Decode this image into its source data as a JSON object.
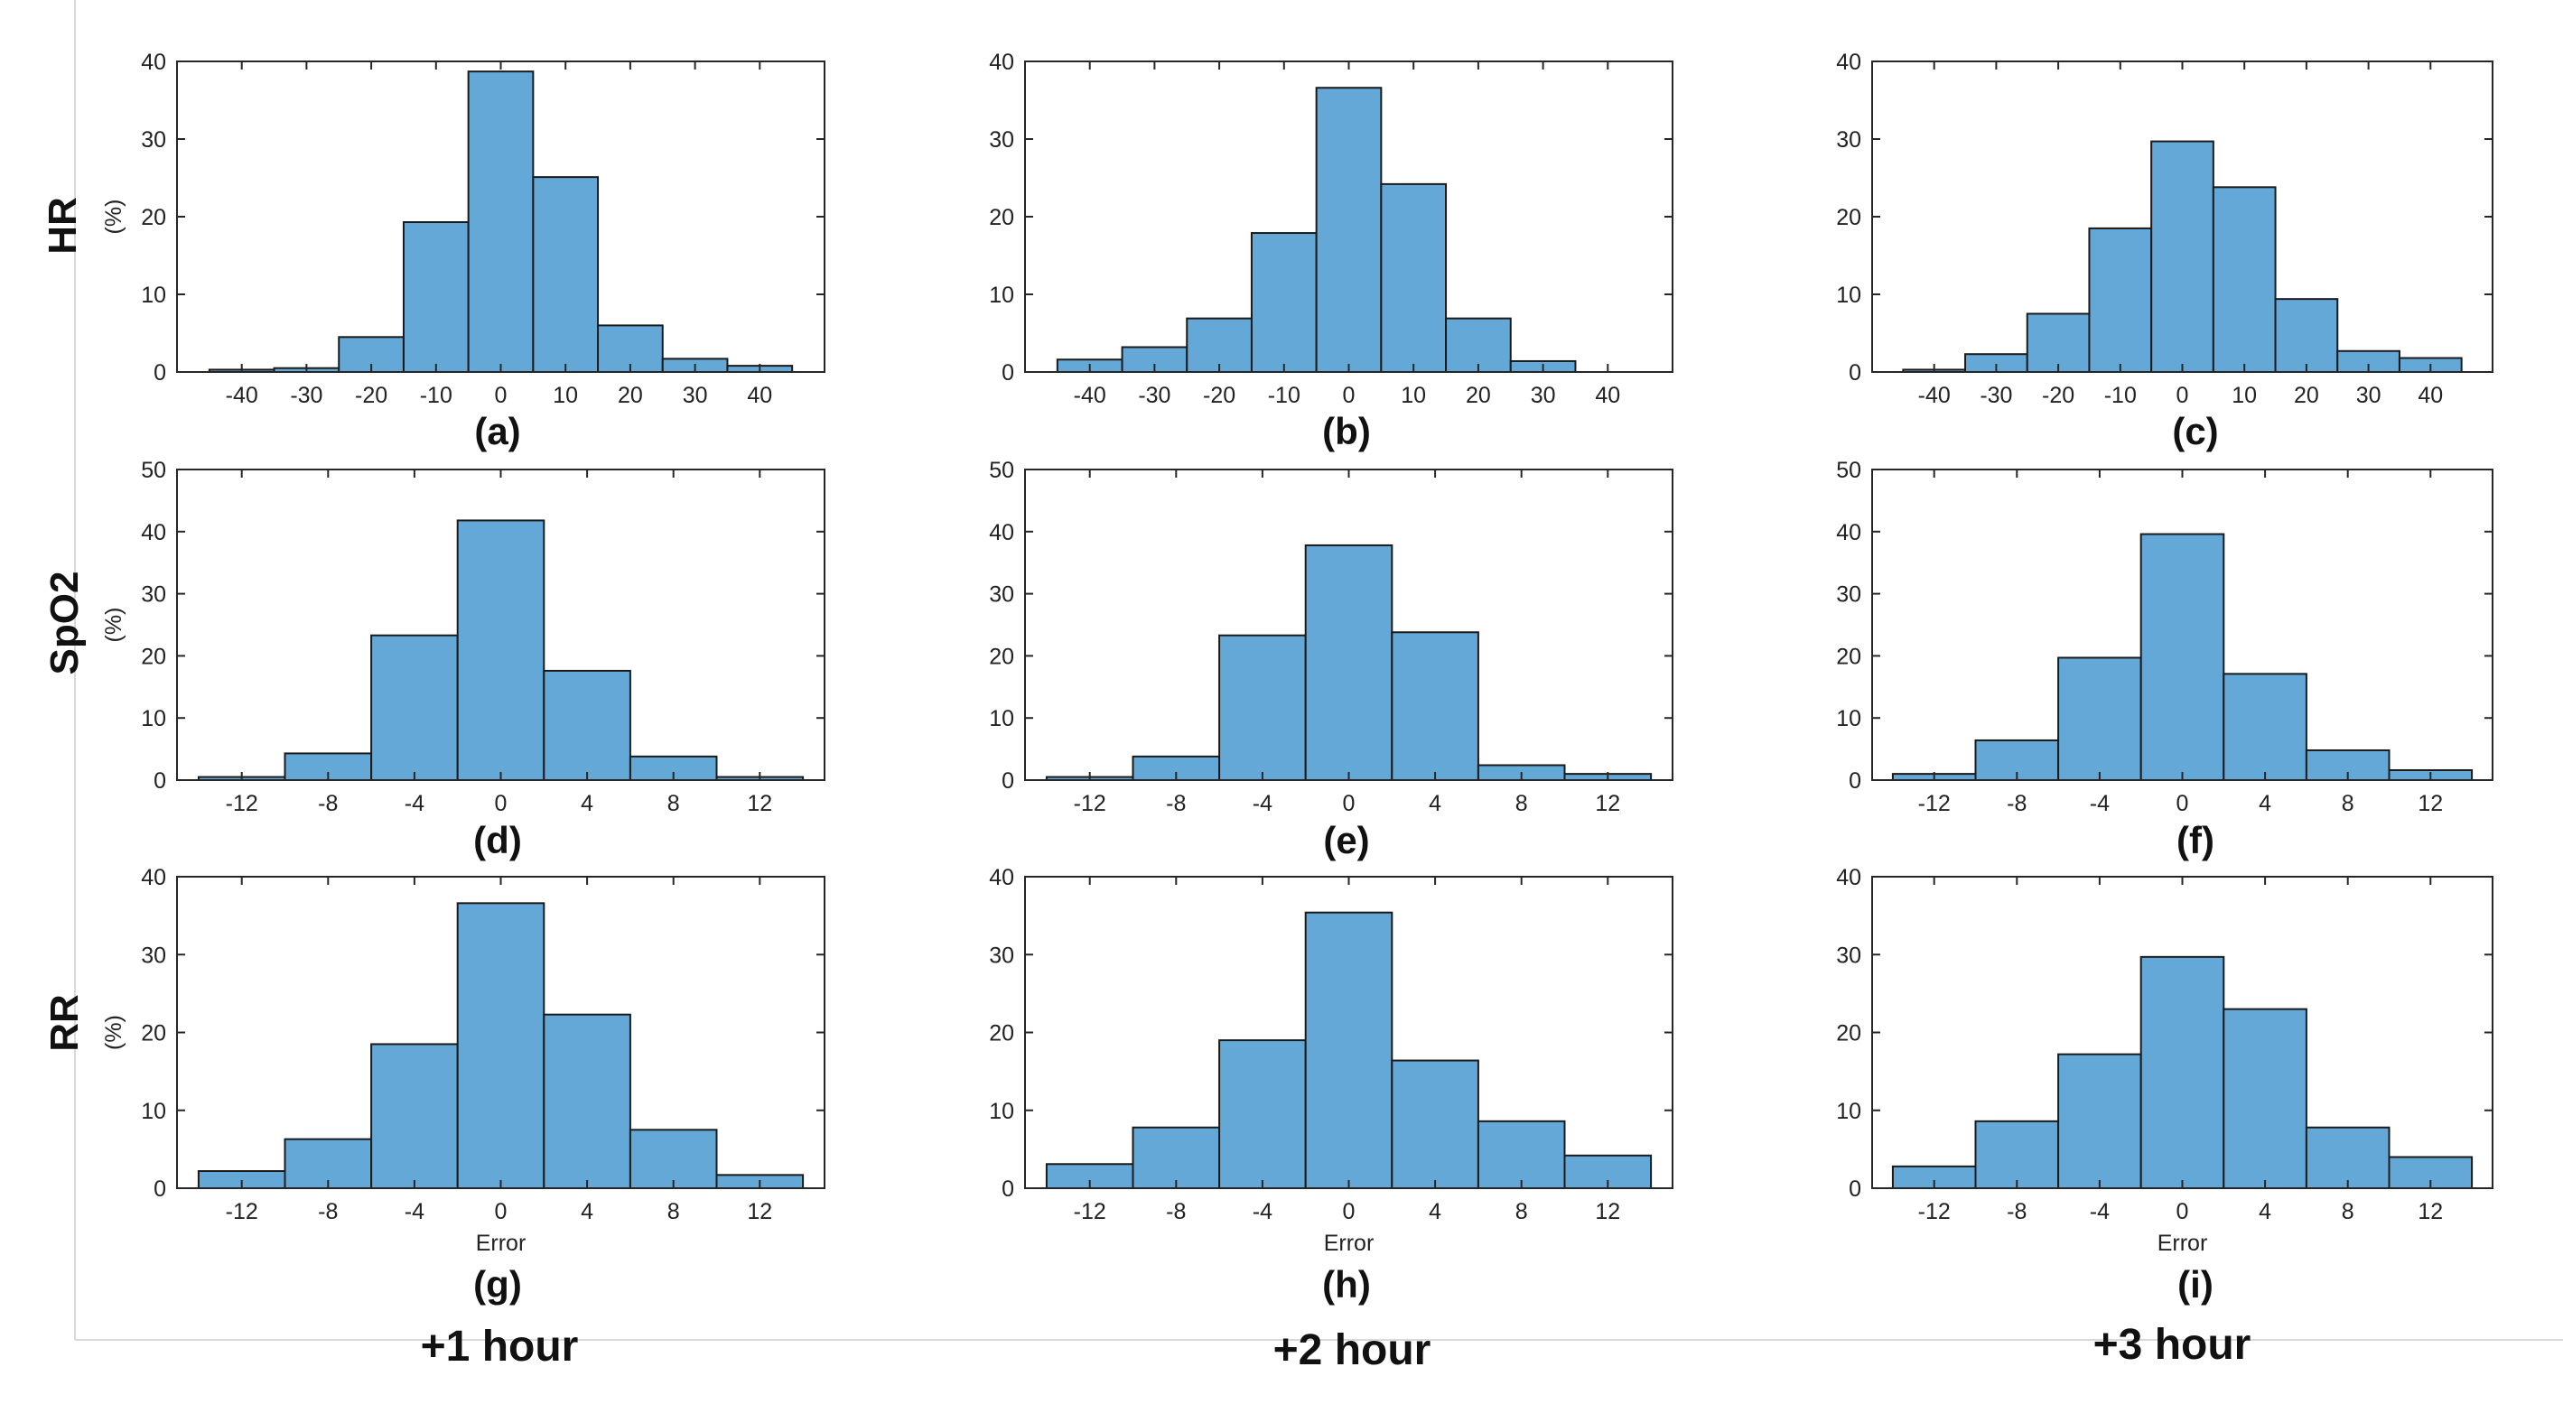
{
  "bar_color": "#64a8d8",
  "row_labels": [
    "HR",
    "SpO2",
    "RR"
  ],
  "col_labels": [
    "+1 hour",
    "+2 hour",
    "+3 hour"
  ],
  "chart_data": [
    {
      "type": "bar",
      "panel": "(a)",
      "row": "HR",
      "col": "+1 hour",
      "xlabel": "",
      "ylabel": "(%)",
      "xlim": [
        -50,
        50
      ],
      "ylim": [
        0,
        40
      ],
      "bin_width": 10,
      "xticks": [
        -40,
        -30,
        -20,
        -10,
        0,
        10,
        20,
        30,
        40
      ],
      "yticks": [
        0,
        10,
        20,
        30,
        40
      ],
      "bin_centers": [
        -40,
        -30,
        -20,
        -10,
        0,
        10,
        20,
        30,
        40
      ],
      "values": [
        0.3,
        0.5,
        4.5,
        19.3,
        38.7,
        25.1,
        6.0,
        1.7,
        0.8
      ]
    },
    {
      "type": "bar",
      "panel": "(b)",
      "row": "HR",
      "col": "+2 hour",
      "xlabel": "",
      "ylabel": "",
      "xlim": [
        -50,
        50
      ],
      "ylim": [
        0,
        40
      ],
      "bin_width": 10,
      "xticks": [
        -40,
        -30,
        -20,
        -10,
        0,
        10,
        20,
        30,
        40
      ],
      "yticks": [
        0,
        10,
        20,
        30,
        40
      ],
      "bin_centers": [
        -40,
        -30,
        -20,
        -10,
        0,
        10,
        20,
        30
      ],
      "values": [
        1.6,
        3.2,
        6.9,
        17.9,
        36.6,
        24.2,
        6.9,
        1.4
      ]
    },
    {
      "type": "bar",
      "panel": "(c)",
      "row": "HR",
      "col": "+3 hour",
      "xlabel": "",
      "ylabel": "",
      "xlim": [
        -50,
        50
      ],
      "ylim": [
        0,
        40
      ],
      "bin_width": 10,
      "xticks": [
        -40,
        -30,
        -20,
        -10,
        0,
        10,
        20,
        30,
        40
      ],
      "yticks": [
        0,
        10,
        20,
        30,
        40
      ],
      "bin_centers": [
        -40,
        -30,
        -20,
        -10,
        0,
        10,
        20,
        30,
        40
      ],
      "values": [
        0.3,
        2.3,
        7.5,
        18.5,
        29.7,
        23.8,
        9.4,
        2.7,
        1.8
      ]
    },
    {
      "type": "bar",
      "panel": "(d)",
      "row": "SpO2",
      "col": "+1 hour",
      "xlabel": "",
      "ylabel": "(%)",
      "xlim": [
        -15,
        15
      ],
      "ylim": [
        0,
        50
      ],
      "bin_width": 4,
      "xticks": [
        -12,
        -8,
        -4,
        0,
        4,
        8,
        12
      ],
      "yticks": [
        0,
        10,
        20,
        30,
        40,
        50
      ],
      "bin_centers": [
        -12,
        -8,
        -4,
        0,
        4,
        8,
        12
      ],
      "values": [
        0.5,
        4.3,
        23.3,
        41.8,
        17.6,
        3.8,
        0.5
      ]
    },
    {
      "type": "bar",
      "panel": "(e)",
      "row": "SpO2",
      "col": "+2 hour",
      "xlabel": "",
      "ylabel": "",
      "xlim": [
        -15,
        15
      ],
      "ylim": [
        0,
        50
      ],
      "bin_width": 4,
      "xticks": [
        -12,
        -8,
        -4,
        0,
        4,
        8,
        12
      ],
      "yticks": [
        0,
        10,
        20,
        30,
        40,
        50
      ],
      "bin_centers": [
        -12,
        -8,
        -4,
        0,
        4,
        8,
        12
      ],
      "values": [
        0.5,
        3.8,
        23.3,
        37.8,
        23.8,
        2.4,
        1.0
      ]
    },
    {
      "type": "bar",
      "panel": "(f)",
      "row": "SpO2",
      "col": "+3 hour",
      "xlabel": "",
      "ylabel": "",
      "xlim": [
        -15,
        15
      ],
      "ylim": [
        0,
        50
      ],
      "bin_width": 4,
      "xticks": [
        -12,
        -8,
        -4,
        0,
        4,
        8,
        12
      ],
      "yticks": [
        0,
        10,
        20,
        30,
        40,
        50
      ],
      "bin_centers": [
        -12,
        -8,
        -4,
        0,
        4,
        8,
        12
      ],
      "values": [
        1.0,
        6.4,
        19.7,
        39.6,
        17.1,
        4.8,
        1.6
      ]
    },
    {
      "type": "bar",
      "panel": "(g)",
      "row": "RR",
      "col": "+1 hour",
      "xlabel": "Error",
      "ylabel": "(%)",
      "xlim": [
        -15,
        15
      ],
      "ylim": [
        0,
        40
      ],
      "bin_width": 4,
      "xticks": [
        -12,
        -8,
        -4,
        0,
        4,
        8,
        12
      ],
      "yticks": [
        0,
        10,
        20,
        30,
        40
      ],
      "bin_centers": [
        -12,
        -8,
        -4,
        0,
        4,
        8,
        12
      ],
      "values": [
        2.2,
        6.3,
        18.5,
        36.6,
        22.3,
        7.5,
        1.7
      ]
    },
    {
      "type": "bar",
      "panel": "(h)",
      "row": "RR",
      "col": "+2 hour",
      "xlabel": "Error",
      "ylabel": "",
      "xlim": [
        -15,
        15
      ],
      "ylim": [
        0,
        40
      ],
      "bin_width": 4,
      "xticks": [
        -12,
        -8,
        -4,
        0,
        4,
        8,
        12
      ],
      "yticks": [
        0,
        10,
        20,
        30,
        40
      ],
      "bin_centers": [
        -12,
        -8,
        -4,
        0,
        4,
        8,
        12
      ],
      "values": [
        3.1,
        7.8,
        19.0,
        35.4,
        16.4,
        8.6,
        4.2
      ]
    },
    {
      "type": "bar",
      "panel": "(i)",
      "row": "RR",
      "col": "+3 hour",
      "xlabel": "Error",
      "ylabel": "",
      "xlim": [
        -15,
        15
      ],
      "ylim": [
        0,
        40
      ],
      "bin_width": 4,
      "xticks": [
        -12,
        -8,
        -4,
        0,
        4,
        8,
        12
      ],
      "yticks": [
        0,
        10,
        20,
        30,
        40
      ],
      "bin_centers": [
        -12,
        -8,
        -4,
        0,
        4,
        8,
        12
      ],
      "values": [
        2.8,
        8.6,
        17.2,
        29.7,
        23.0,
        7.8,
        4.0
      ]
    }
  ]
}
